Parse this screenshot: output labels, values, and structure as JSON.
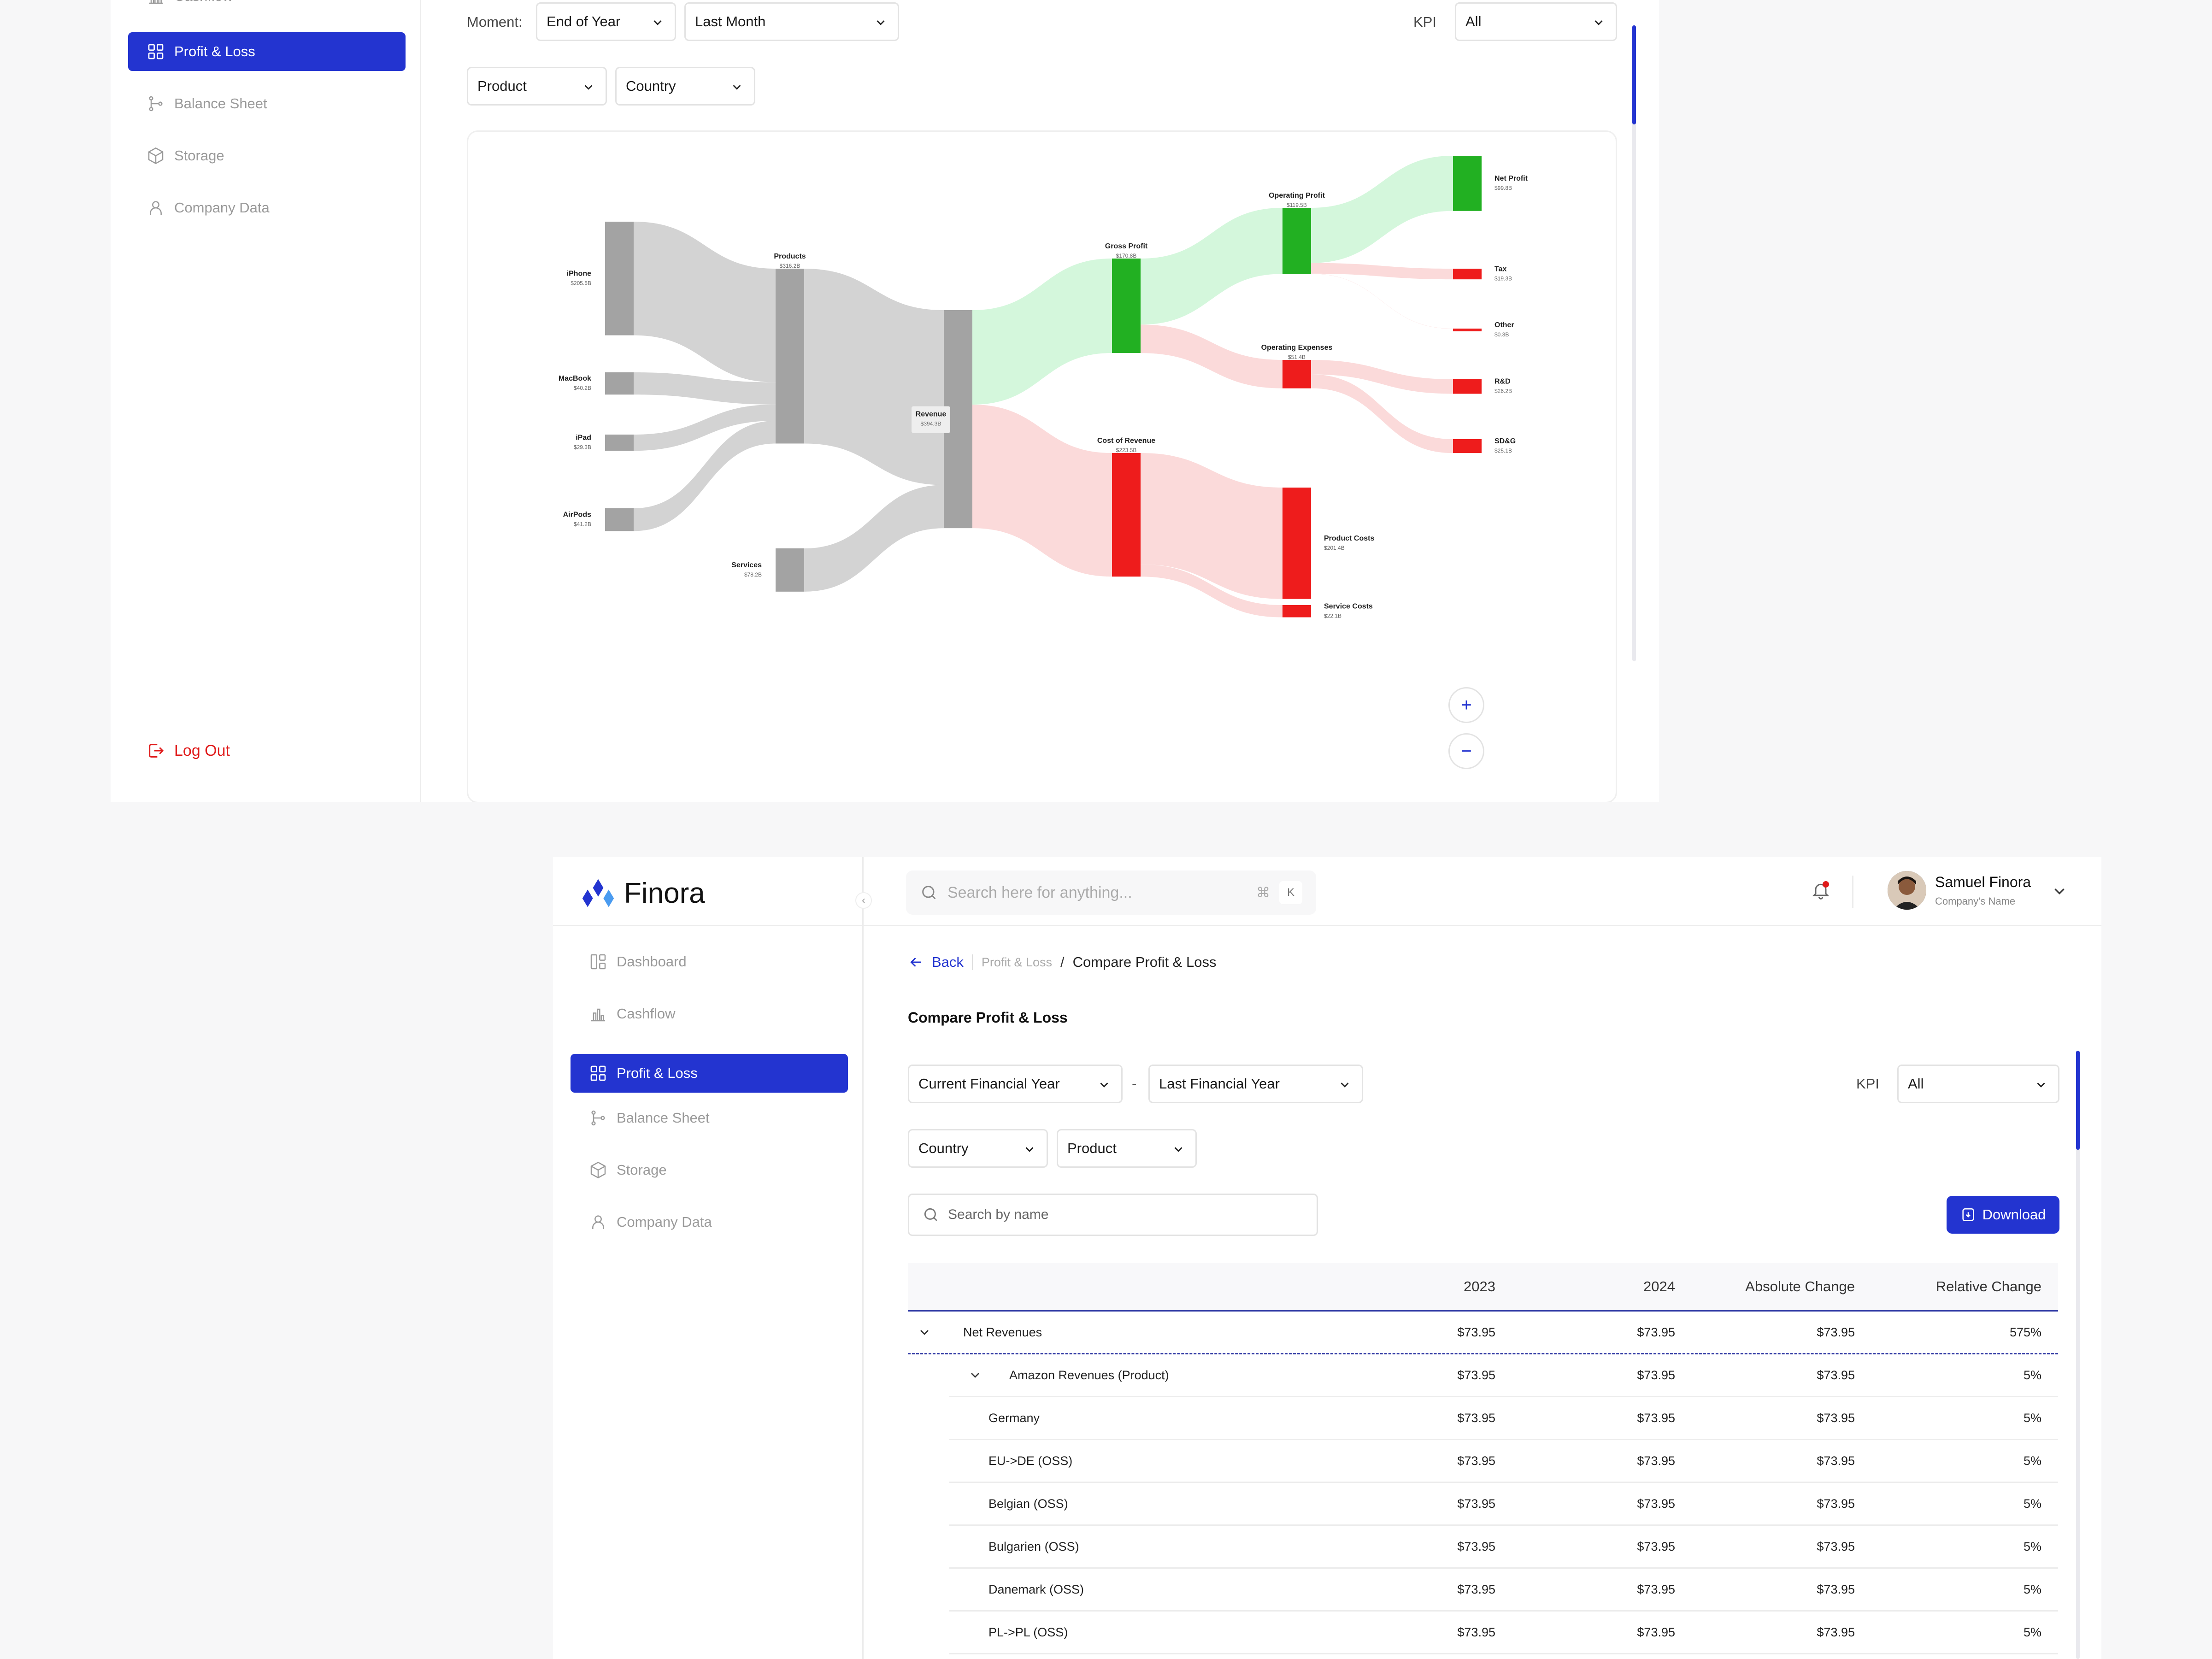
{
  "top_frame": {
    "sidebar": {
      "partial_item": {
        "label": "Cashflow",
        "icon": "bar-chart-icon"
      },
      "items": [
        {
          "label": "Profit & Loss",
          "icon": "grid-icon",
          "active": true
        },
        {
          "label": "Balance Sheet",
          "icon": "branch-icon"
        },
        {
          "label": "Storage",
          "icon": "box-icon"
        },
        {
          "label": "Company Data",
          "icon": "user-icon"
        }
      ],
      "logout": "Log Out"
    },
    "filters": {
      "moment_label": "Moment:",
      "moment_value": "End of Year",
      "period_value": "Last Month",
      "kpi_label": "KPI",
      "kpi_value": "All",
      "product_value": "Product",
      "country_value": "Country"
    },
    "zoom": {
      "plus": "+",
      "minus": "−"
    }
  },
  "chart_data": {
    "type": "sankey",
    "unit": "$",
    "nodes": [
      {
        "name": "iPhone",
        "value": "$205.5B"
      },
      {
        "name": "MacBook",
        "value": "$40.2B"
      },
      {
        "name": "iPad",
        "value": "$29.3B"
      },
      {
        "name": "AirPods",
        "value": "$41.2B"
      },
      {
        "name": "Services",
        "value": "$78.2B"
      },
      {
        "name": "Products",
        "value": "$316.2B"
      },
      {
        "name": "Revenue",
        "value": "$394.3B"
      },
      {
        "name": "Gross Profit",
        "value": "$170.8B"
      },
      {
        "name": "Cost of Revenue",
        "value": "$223.5B"
      },
      {
        "name": "Operating Profit",
        "value": "$119.5B"
      },
      {
        "name": "Operating Expenses",
        "value": "$51.4B"
      },
      {
        "name": "Net Profit",
        "value": "$99.8B"
      },
      {
        "name": "Tax",
        "value": "$19.3B"
      },
      {
        "name": "Other",
        "value": "$0.3B"
      },
      {
        "name": "R&D",
        "value": "$26.2B"
      },
      {
        "name": "SD&G",
        "value": "$25.1B"
      },
      {
        "name": "Product Costs",
        "value": "$201.4B"
      },
      {
        "name": "Service Costs",
        "value": "$22.1B"
      }
    ],
    "links": [
      {
        "source": "iPhone",
        "target": "Products",
        "value": 205.5
      },
      {
        "source": "MacBook",
        "target": "Products",
        "value": 40.2
      },
      {
        "source": "iPad",
        "target": "Products",
        "value": 29.3
      },
      {
        "source": "AirPods",
        "target": "Products",
        "value": 41.2
      },
      {
        "source": "Products",
        "target": "Revenue",
        "value": 316.2
      },
      {
        "source": "Services",
        "target": "Revenue",
        "value": 78.2
      },
      {
        "source": "Revenue",
        "target": "Gross Profit",
        "value": 170.8
      },
      {
        "source": "Revenue",
        "target": "Cost of Revenue",
        "value": 223.5
      },
      {
        "source": "Gross Profit",
        "target": "Operating Profit",
        "value": 119.5
      },
      {
        "source": "Gross Profit",
        "target": "Operating Expenses",
        "value": 51.4
      },
      {
        "source": "Operating Profit",
        "target": "Net Profit",
        "value": 99.8
      },
      {
        "source": "Operating Profit",
        "target": "Tax",
        "value": 19.3
      },
      {
        "source": "Operating Profit",
        "target": "Other",
        "value": 0.3
      },
      {
        "source": "Operating Expenses",
        "target": "R&D",
        "value": 26.2
      },
      {
        "source": "Operating Expenses",
        "target": "SD&G",
        "value": 25.1
      },
      {
        "source": "Cost of Revenue",
        "target": "Product Costs",
        "value": 201.4
      },
      {
        "source": "Cost of Revenue",
        "target": "Service Costs",
        "value": 22.1
      }
    ],
    "colors": {
      "neutral": "#a3a3a3",
      "profit": "#22b022",
      "cost": "#ee1c1c",
      "neutral_flow": "#d3d3d3",
      "profit_flow": "#d4f7dc",
      "cost_flow": "#fbdada"
    }
  },
  "bottom_frame": {
    "brand": "Finora",
    "search": {
      "placeholder": "Search here for anything...",
      "shortcut_cmd": "⌘",
      "shortcut_key": "K"
    },
    "user": {
      "name": "Samuel Finora",
      "company": "Company's Name"
    },
    "sidebar": {
      "items": [
        {
          "label": "Dashboard",
          "icon": "dashboard-icon"
        },
        {
          "label": "Cashflow",
          "icon": "bar-chart-icon"
        },
        {
          "label": "Profit & Loss",
          "icon": "grid-icon",
          "active": true
        },
        {
          "label": "Balance Sheet",
          "icon": "branch-icon"
        },
        {
          "label": "Storage",
          "icon": "box-icon"
        },
        {
          "label": "Company Data",
          "icon": "user-icon"
        }
      ]
    },
    "breadcrumb": {
      "back": "Back",
      "parent": "Profit & Loss",
      "sep": "/",
      "current": "Compare Profit & Loss"
    },
    "page_title": "Compare Profit & Loss",
    "filters": {
      "period_a": "Current Financial Year",
      "dash": "-",
      "period_b": "Last Financial Year",
      "kpi_label": "KPI",
      "kpi_value": "All",
      "country": "Country",
      "product": "Product"
    },
    "table_search_placeholder": "Search by name",
    "download": "Download",
    "table": {
      "columns": [
        "",
        "2023",
        "2024",
        "Absolute Change",
        "Relative Change"
      ],
      "rows": [
        {
          "level": 0,
          "name": "Net Revenues",
          "y2023": "$73.95",
          "y2024": "$73.95",
          "abs": "$73.95",
          "rel": "575%"
        },
        {
          "level": 1,
          "name": "Amazon Revenues (Product)",
          "y2023": "$73.95",
          "y2024": "$73.95",
          "abs": "$73.95",
          "rel": "5%"
        },
        {
          "level": 2,
          "name": "Germany",
          "y2023": "$73.95",
          "y2024": "$73.95",
          "abs": "$73.95",
          "rel": "5%"
        },
        {
          "level": 2,
          "name": "EU->DE (OSS)",
          "y2023": "$73.95",
          "y2024": "$73.95",
          "abs": "$73.95",
          "rel": "5%"
        },
        {
          "level": 2,
          "name": "Belgian (OSS)",
          "y2023": "$73.95",
          "y2024": "$73.95",
          "abs": "$73.95",
          "rel": "5%"
        },
        {
          "level": 2,
          "name": "Bulgarien (OSS)",
          "y2023": "$73.95",
          "y2024": "$73.95",
          "abs": "$73.95",
          "rel": "5%"
        },
        {
          "level": 2,
          "name": "Danemark (OSS)",
          "y2023": "$73.95",
          "y2024": "$73.95",
          "abs": "$73.95",
          "rel": "5%"
        },
        {
          "level": 2,
          "name": "PL->PL (OSS)",
          "y2023": "$73.95",
          "y2024": "$73.95",
          "abs": "$73.95",
          "rel": "5%"
        }
      ]
    }
  }
}
